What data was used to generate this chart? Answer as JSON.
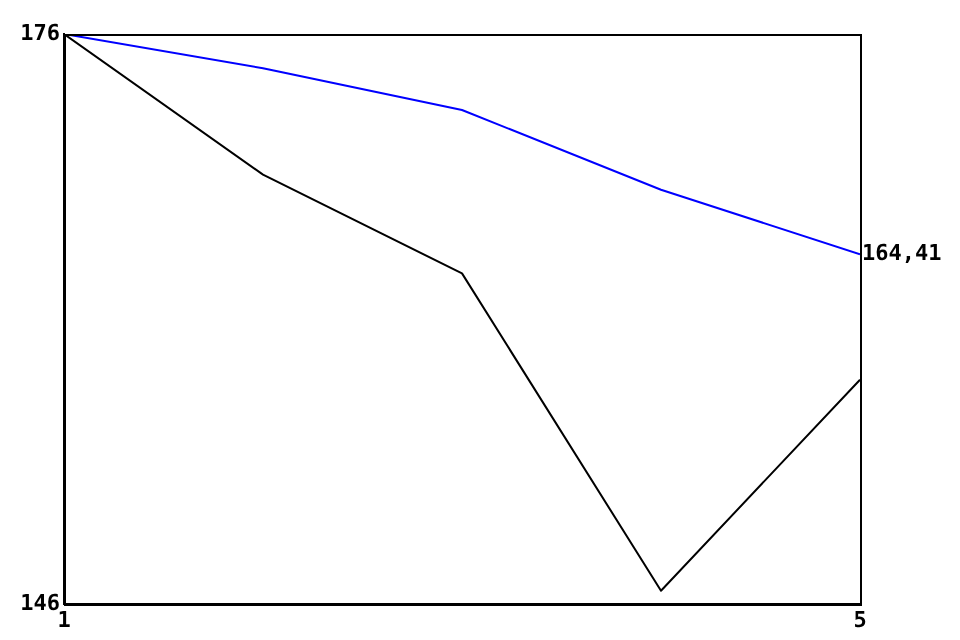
{
  "chart_data": {
    "type": "line",
    "x": [
      1,
      2,
      3,
      4,
      5
    ],
    "xlim": [
      1,
      5
    ],
    "xticks": [
      1,
      5
    ],
    "ylim": [
      146,
      176
    ],
    "yticks": [
      146,
      176
    ],
    "grid": false,
    "legend": false,
    "marker": "none",
    "line_style": "solid",
    "series": [
      {
        "color": "#0000ff",
        "values": [
          176,
          174.2,
          172,
          167.8,
          164.41
        ]
      },
      {
        "color": "#000000",
        "values": [
          176,
          168.6,
          163.4,
          146.7,
          157.8
        ]
      }
    ],
    "annotations": [
      {
        "text": "164,41",
        "x": 5,
        "y": 164.41
      }
    ]
  }
}
